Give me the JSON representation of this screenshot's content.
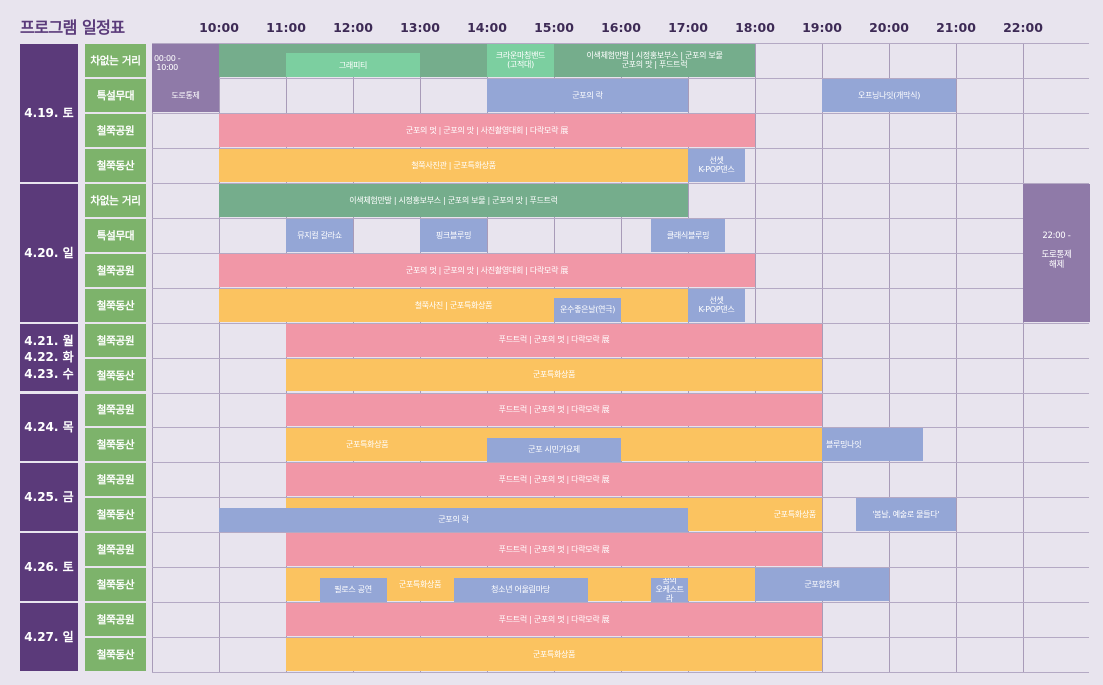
{
  "title": "프로그램 일정표",
  "hours": [
    "10:00",
    "11:00",
    "12:00",
    "13:00",
    "14:00",
    "15:00",
    "16:00",
    "17:00",
    "18:00",
    "19:00",
    "20:00",
    "21:00",
    "22:00"
  ],
  "colors": {
    "purple": "#8f7aa8",
    "green": "#75ad8c",
    "mint": "#7ccfa0",
    "pink": "#f197a7",
    "yellow": "#fbc360",
    "blue": "#94a6d6",
    "date": "#5b3a7a",
    "venue": "#7db36b"
  },
  "date_groups": [
    {
      "label": "4.19. 토",
      "rows": 4
    },
    {
      "label": "4.20. 일",
      "rows": 4
    },
    {
      "label": "4.21. 월\n4.22. 화\n4.23. 수",
      "rows": 2
    },
    {
      "label": "4.24. 목",
      "rows": 2
    },
    {
      "label": "4.25. 금",
      "rows": 2
    },
    {
      "label": "4.26. 토",
      "rows": 2
    },
    {
      "label": "4.27. 일",
      "rows": 2
    }
  ],
  "rows": [
    {
      "venue": "차없는 거리",
      "events": [
        {
          "start": 9.0,
          "end": 10.0,
          "color": "purple",
          "label": "00:00 -\n10:00",
          "span": 2
        },
        {
          "start": 10.0,
          "end": 18.0,
          "color": "green",
          "label": ""
        },
        {
          "start": 11.0,
          "end": 13.0,
          "color": "mint",
          "label": "그래피티",
          "half": "bottom"
        },
        {
          "start": 14.0,
          "end": 15.0,
          "color": "mint",
          "label": "크라운마칭밴드\n(고적대)"
        },
        {
          "start": 15.0,
          "end": 18.0,
          "color": "green",
          "label": "이색체험만발 | 시정홍보부스 | 군포의 보물\n군포의 맛 | 푸드트럭"
        }
      ]
    },
    {
      "venue": "특설무대",
      "events": [
        {
          "start": 9.0,
          "end": 10.0,
          "color": "purple",
          "label": "도로통제"
        },
        {
          "start": 14.0,
          "end": 17.0,
          "color": "blue",
          "label": "군포의 락"
        },
        {
          "start": 19.0,
          "end": 21.0,
          "color": "blue",
          "label": "오프닝나잇(개막식)"
        }
      ]
    },
    {
      "venue": "철쭉공원",
      "events": [
        {
          "start": 10.0,
          "end": 18.0,
          "color": "pink",
          "label": "군포의 멋 | 군포의 맛 | 사진촬영대회 | 다락모락 展"
        }
      ]
    },
    {
      "venue": "철쭉동산",
      "events": [
        {
          "start": 10.0,
          "end": 17.0,
          "color": "yellow",
          "label": "철쭉사진관 | 군포특화상품"
        },
        {
          "start": 17.0,
          "end": 17.85,
          "color": "blue",
          "label": "선셋\nK-POP댄스"
        }
      ]
    },
    {
      "venue": "차없는 거리",
      "events": [
        {
          "start": 10.0,
          "end": 17.0,
          "color": "green",
          "label": "이색체험만발 | 시정홍보부스 | 군포의 보물 | 군포의 맛 | 푸드트럭"
        },
        {
          "start": 22.0,
          "end": 23.0,
          "color": "purple",
          "label": "22:00 -\n\n도로통제\n해제",
          "span": 4
        }
      ]
    },
    {
      "venue": "특설무대",
      "events": [
        {
          "start": 11.0,
          "end": 12.0,
          "color": "blue",
          "label": "뮤지컬 갈라쇼"
        },
        {
          "start": 13.0,
          "end": 14.0,
          "color": "blue",
          "label": "핑크블루밍"
        },
        {
          "start": 16.45,
          "end": 17.55,
          "color": "blue",
          "label": "클래식블루밍"
        }
      ]
    },
    {
      "venue": "철쭉공원",
      "events": [
        {
          "start": 10.0,
          "end": 18.0,
          "color": "pink",
          "label": "군포의 멋 | 군포의 맛 | 사진촬영대회 | 다락모락 展"
        }
      ]
    },
    {
      "venue": "철쭉동산",
      "events": [
        {
          "start": 10.0,
          "end": 17.0,
          "color": "yellow",
          "label": "철쭉사진 | 군포특화상품"
        },
        {
          "start": 15.0,
          "end": 16.0,
          "color": "blue",
          "label": "운수좋은날(연극)",
          "half": "bottom"
        },
        {
          "start": 17.0,
          "end": 17.85,
          "color": "blue",
          "label": "선셋\nK-POP댄스"
        }
      ]
    },
    {
      "venue": "철쭉공원",
      "events": [
        {
          "start": 11.0,
          "end": 19.0,
          "color": "pink",
          "label": "푸드트럭 | 군포의 멋 | 다락모락 展"
        }
      ]
    },
    {
      "venue": "철쭉동산",
      "events": [
        {
          "start": 11.0,
          "end": 19.0,
          "color": "yellow",
          "label": "군포특화상품"
        }
      ]
    },
    {
      "venue": "철쭉공원",
      "events": [
        {
          "start": 11.0,
          "end": 19.0,
          "color": "pink",
          "label": "푸드트럭 | 군포의 멋 | 다락모락 展"
        }
      ]
    },
    {
      "venue": "철쭉동산",
      "events": [
        {
          "start": 11.0,
          "end": 19.0,
          "color": "yellow",
          "label": "군포특화상품",
          "align": "left"
        },
        {
          "start": 14.0,
          "end": 16.0,
          "color": "blue",
          "label": "군포 시민가요제",
          "half": "bottom"
        },
        {
          "start": 19.0,
          "end": 20.5,
          "color": "blue",
          "label": "블루밍나잇",
          "align": "left"
        }
      ]
    },
    {
      "venue": "철쭉공원",
      "events": [
        {
          "start": 11.0,
          "end": 19.0,
          "color": "pink",
          "label": "푸드트럭 | 군포의 멋 | 다락모락 展"
        }
      ]
    },
    {
      "venue": "철쭉동산",
      "events": [
        {
          "start": 11.0,
          "end": 19.0,
          "color": "yellow",
          "label": "군포특화상품",
          "align": "right"
        },
        {
          "start": 10.0,
          "end": 17.0,
          "color": "blue",
          "label": "군포의 락",
          "half": "bottom"
        },
        {
          "start": 19.5,
          "end": 21.0,
          "color": "blue",
          "label": "'봄날, 예술로 물들다'"
        }
      ]
    },
    {
      "venue": "철쭉공원",
      "events": [
        {
          "start": 11.0,
          "end": 19.0,
          "color": "pink",
          "label": "푸드트럭 | 군포의 멋 | 다락모락 展"
        }
      ]
    },
    {
      "venue": "철쭉동산",
      "events": [
        {
          "start": 11.0,
          "end": 18.0,
          "color": "yellow",
          "label": ""
        },
        {
          "start": 11.5,
          "end": 12.5,
          "color": "blue",
          "label": "필로스 공연",
          "half": "bottom"
        },
        {
          "start": 12.5,
          "end": 13.5,
          "color": "yellow",
          "label": "군포특화상품"
        },
        {
          "start": 13.5,
          "end": 15.5,
          "color": "blue",
          "label": "청소년 어울림마당",
          "half": "bottom"
        },
        {
          "start": 16.45,
          "end": 17.0,
          "color": "blue",
          "label": "꿈의\n오케스트라",
          "half": "bottom"
        },
        {
          "start": 18.0,
          "end": 20.0,
          "color": "blue",
          "label": "군포합창제"
        }
      ]
    },
    {
      "venue": "철쭉공원",
      "events": [
        {
          "start": 11.0,
          "end": 19.0,
          "color": "pink",
          "label": "푸드트럭 | 군포의 멋 | 다락모락 展"
        }
      ]
    },
    {
      "venue": "철쭉동산",
      "events": [
        {
          "start": 11.0,
          "end": 19.0,
          "color": "yellow",
          "label": "군포특화상품"
        }
      ]
    }
  ]
}
